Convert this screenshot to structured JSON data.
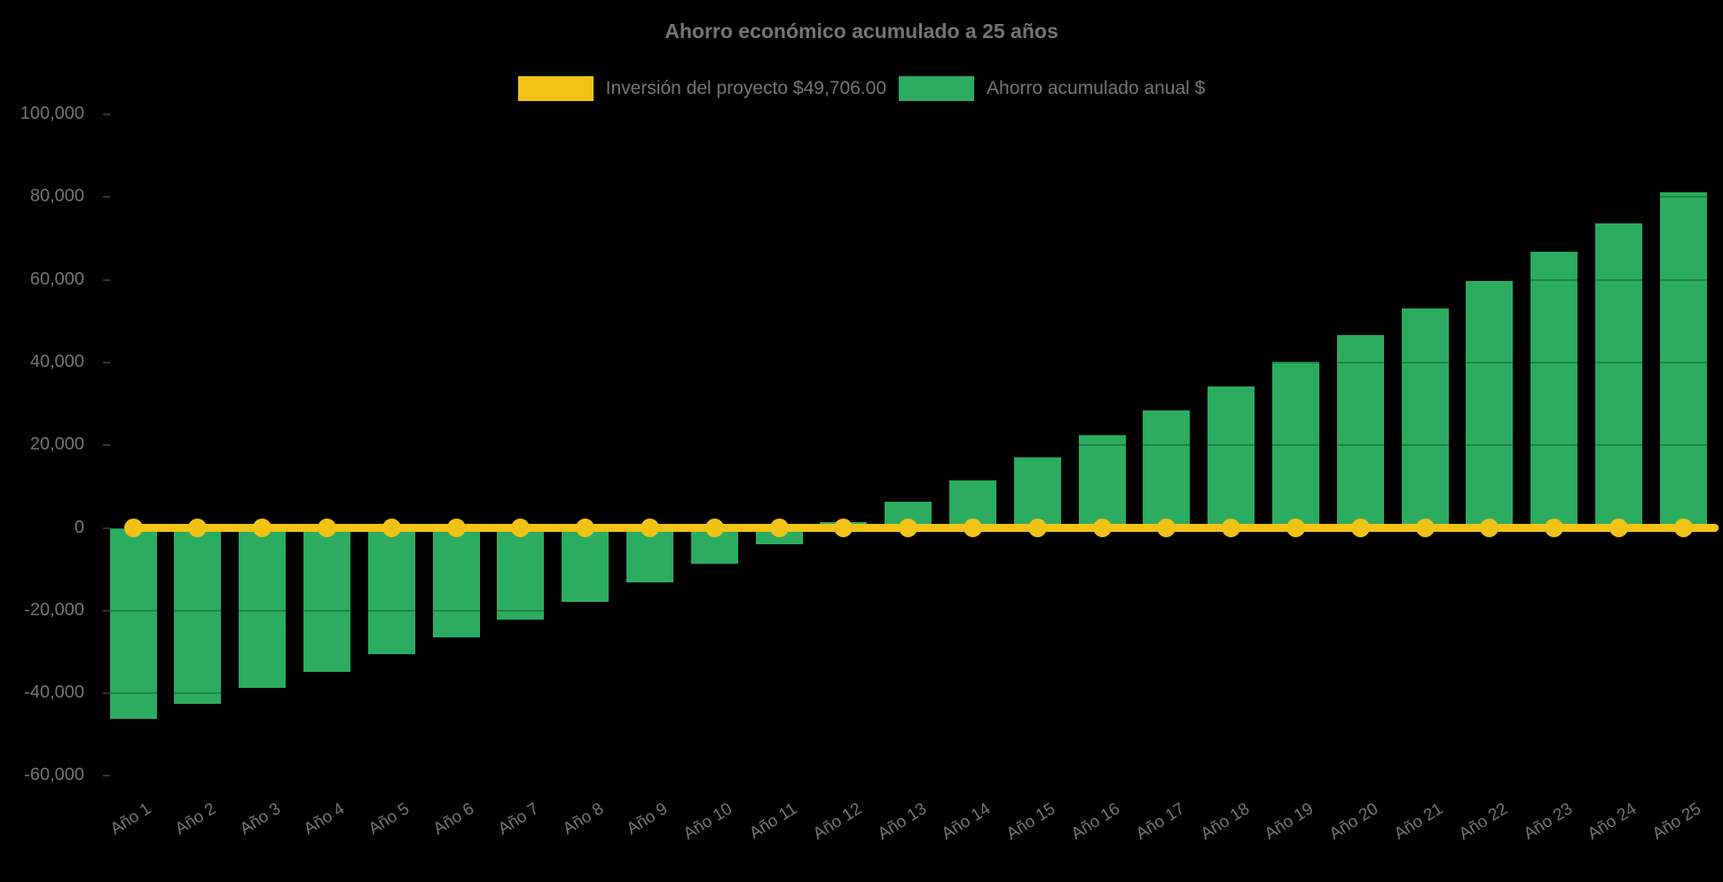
{
  "chart_data": {
    "type": "bar",
    "title": "Ahorro económico acumulado a 25 años",
    "legend_position": "top",
    "background_color": "#000000",
    "text_color": "#757575",
    "categories": [
      "Año 1",
      "Año 2",
      "Año 3",
      "Año 4",
      "Año 5",
      "Año 6",
      "Año 7",
      "Año 8",
      "Año 9",
      "Año 10",
      "Año 11",
      "Año 12",
      "Año 13",
      "Año 14",
      "Año 15",
      "Año 16",
      "Año 17",
      "Año 18",
      "Año 19",
      "Año 20",
      "Año 21",
      "Año 22",
      "Año 23",
      "Año 24",
      "Año 25"
    ],
    "series": [
      {
        "name": "Inversión del proyecto $49,706.00",
        "type": "line",
        "color": "#F0C316",
        "values": [
          0,
          0,
          0,
          0,
          0,
          0,
          0,
          0,
          0,
          0,
          0,
          0,
          0,
          0,
          0,
          0,
          0,
          0,
          0,
          0,
          0,
          0,
          0,
          0,
          0
        ]
      },
      {
        "name": "Ahorro acumulado anual $",
        "type": "bar",
        "color": "#2BAC60",
        "values": [
          -46100,
          -42500,
          -38600,
          -34800,
          -30600,
          -26400,
          -22200,
          -17900,
          -13200,
          -8700,
          -3900,
          1300,
          6300,
          11500,
          17100,
          22500,
          28400,
          34200,
          40200,
          46700,
          53100,
          59800,
          66700,
          73600,
          81100
        ]
      }
    ],
    "y_axis": {
      "min": -60000,
      "max": 100000,
      "step": 20000,
      "tick_values": [
        100000,
        80000,
        60000,
        40000,
        20000,
        0,
        -20000,
        -40000,
        -60000
      ],
      "tick_labels": [
        "100,000",
        "80,000",
        "60,000",
        "40,000",
        "20,000",
        "0",
        "-20,000",
        "-40,000",
        "-60,000"
      ]
    },
    "x_axis": {
      "label_rotation_deg": -32
    },
    "grid": "faint dark gridlines drawn over bars"
  }
}
